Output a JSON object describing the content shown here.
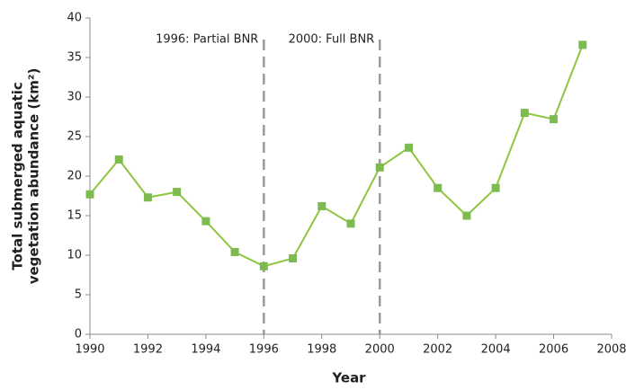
{
  "chart_data": {
    "type": "line",
    "xlabel": "Year",
    "ylabel": [
      "Total  submerged aquatic",
      "vegetation abundance (km²)"
    ],
    "x": [
      1990,
      1991,
      1992,
      1993,
      1994,
      1995,
      1996,
      1997,
      1998,
      1999,
      2000,
      2001,
      2002,
      2003,
      2004,
      2005,
      2006,
      2007
    ],
    "values": [
      17.7,
      22.1,
      17.3,
      18.0,
      14.3,
      10.4,
      8.6,
      9.6,
      16.2,
      14.0,
      21.1,
      23.6,
      18.5,
      15.0,
      18.5,
      28.0,
      27.2,
      36.6
    ],
    "color": "#8cc63f",
    "marker_color": "#7dba4f",
    "xlim": [
      1990,
      2008
    ],
    "xticks": [
      1990,
      1992,
      1994,
      1996,
      1998,
      2000,
      2002,
      2004,
      2006,
      2008
    ],
    "ylim": [
      0,
      40
    ],
    "yticks": [
      0,
      5,
      10,
      15,
      20,
      25,
      30,
      35,
      40
    ],
    "grid": false,
    "annotations": [
      {
        "x": 1996,
        "text": "1996: Partial BNR"
      },
      {
        "x": 2000,
        "text": "2000: Full BNR"
      }
    ]
  }
}
